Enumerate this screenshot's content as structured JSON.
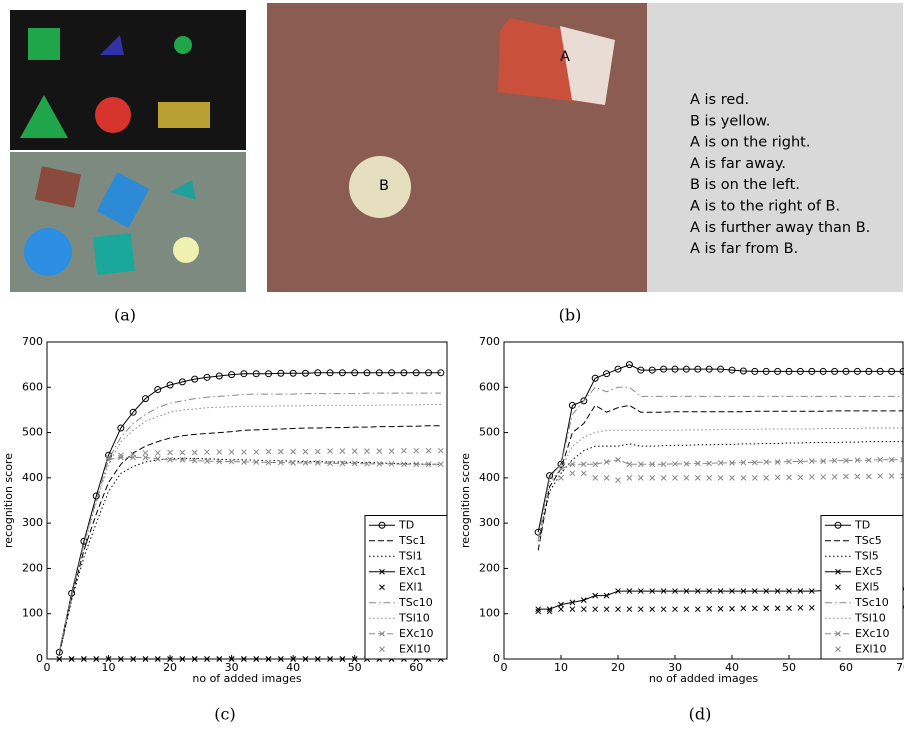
{
  "panels": {
    "a": {
      "caption": "(a)"
    },
    "b": {
      "caption": "(b)",
      "object_labels": [
        "A",
        "B"
      ],
      "statements": [
        "A is red.",
        "B is yellow.",
        "A is on the right.",
        "A is far away.",
        "B is on the left.",
        "A is to the right of B.",
        "A is further away than B.",
        "A is far from B."
      ]
    },
    "c": {
      "caption": "(c)"
    },
    "d": {
      "caption": "(d)"
    }
  },
  "chart_data": [
    {
      "type": "line",
      "xlabel": "no of added images",
      "ylabel": "recognition score",
      "xlim": [
        0,
        65
      ],
      "xticks": [
        0,
        10,
        20,
        30,
        40,
        50,
        60
      ],
      "ylim": [
        0,
        700
      ],
      "yticks": [
        0,
        100,
        200,
        300,
        400,
        500,
        600,
        700
      ],
      "legend": "lower right",
      "x": [
        2,
        4,
        6,
        8,
        10,
        12,
        14,
        16,
        18,
        20,
        22,
        24,
        26,
        28,
        30,
        32,
        34,
        36,
        38,
        40,
        42,
        44,
        46,
        48,
        50,
        52,
        54,
        56,
        58,
        60,
        62,
        64
      ],
      "series": [
        {
          "name": "TD",
          "color": "#000000",
          "dash": "solid",
          "marker": "o",
          "line": true,
          "values": [
            15,
            145,
            260,
            360,
            450,
            510,
            545,
            575,
            595,
            605,
            612,
            618,
            622,
            625,
            628,
            630,
            630,
            630,
            631,
            631,
            631,
            632,
            632,
            632,
            632,
            632,
            632,
            632,
            632,
            632,
            632,
            632
          ]
        },
        {
          "name": "TSc1",
          "color": "#000000",
          "dash": "dashed",
          "marker": "none",
          "line": true,
          "values": [
            10,
            135,
            240,
            320,
            390,
            430,
            455,
            470,
            480,
            488,
            493,
            496,
            498,
            500,
            502,
            505,
            506,
            507,
            508,
            509,
            510,
            510,
            511,
            511,
            512,
            512,
            513,
            513,
            514,
            514,
            515,
            515
          ]
        },
        {
          "name": "TSl1",
          "color": "#000000",
          "dash": "dotted",
          "marker": "none",
          "line": true,
          "values": [
            10,
            130,
            225,
            300,
            370,
            410,
            425,
            435,
            440,
            442,
            443,
            443,
            442,
            441,
            440,
            440,
            439,
            438,
            438,
            437,
            436,
            436,
            435,
            435,
            434,
            434,
            433,
            432,
            432,
            431,
            430,
            430
          ]
        },
        {
          "name": "EXc1",
          "color": "#000000",
          "dash": "solid",
          "marker": "x",
          "line": true,
          "values": [
            0,
            0,
            0,
            0,
            0,
            0,
            0,
            0,
            0,
            0,
            0,
            0,
            0,
            0,
            0,
            0,
            0,
            0,
            0,
            0,
            0,
            0,
            0,
            0,
            0,
            0,
            0,
            0,
            0,
            0,
            0,
            0
          ]
        },
        {
          "name": "EXl1",
          "color": "#000000",
          "dash": "solid",
          "marker": "x",
          "line": false,
          "values": [
            0,
            0,
            0,
            0,
            0,
            0,
            0,
            0,
            0,
            0,
            0,
            0,
            0,
            0,
            0,
            0,
            0,
            0,
            0,
            0,
            0,
            0,
            0,
            0,
            0,
            0,
            0,
            0,
            0,
            0,
            0,
            0
          ]
        },
        {
          "name": "TSc10",
          "color": "#888888",
          "dash": "dashdot",
          "marker": "none",
          "line": true,
          "values": [
            15,
            140,
            255,
            350,
            440,
            490,
            520,
            540,
            555,
            565,
            570,
            575,
            578,
            580,
            582,
            584,
            585,
            585,
            585,
            585,
            586,
            586,
            586,
            586,
            586,
            587,
            587,
            587,
            587,
            587,
            587,
            587
          ]
        },
        {
          "name": "TSl10",
          "color": "#888888",
          "dash": "dotted",
          "marker": "none",
          "line": true,
          "values": [
            15,
            140,
            250,
            345,
            430,
            480,
            505,
            525,
            535,
            545,
            550,
            552,
            555,
            556,
            557,
            558,
            558,
            558,
            559,
            559,
            559,
            560,
            560,
            560,
            560,
            560,
            561,
            561,
            561,
            561,
            562,
            562
          ]
        },
        {
          "name": "EXc10",
          "color": "#888888",
          "dash": "dashed",
          "marker": "x",
          "line": true,
          "values": [
            null,
            null,
            null,
            null,
            440,
            445,
            445,
            445,
            442,
            440,
            440,
            438,
            437,
            436,
            436,
            435,
            435,
            434,
            434,
            433,
            433,
            433,
            432,
            432,
            432,
            431,
            431,
            431,
            430,
            430,
            430,
            430
          ]
        },
        {
          "name": "EXl10",
          "color": "#888888",
          "dash": "solid",
          "marker": "x",
          "line": false,
          "values": [
            null,
            null,
            null,
            null,
            445,
            450,
            452,
            455,
            455,
            456,
            456,
            456,
            457,
            457,
            457,
            457,
            457,
            458,
            458,
            458,
            458,
            458,
            459,
            459,
            459,
            459,
            459,
            459,
            460,
            460,
            460,
            460
          ]
        }
      ]
    },
    {
      "type": "line",
      "xlabel": "no of added images",
      "ylabel": "recognition score",
      "xlim": [
        0,
        70
      ],
      "xticks": [
        0,
        10,
        20,
        30,
        40,
        50,
        60,
        70
      ],
      "ylim": [
        0,
        700
      ],
      "yticks": [
        0,
        100,
        200,
        300,
        400,
        500,
        600,
        700
      ],
      "legend": "lower right",
      "x": [
        6,
        8,
        10,
        12,
        14,
        16,
        18,
        20,
        22,
        24,
        26,
        28,
        30,
        32,
        34,
        36,
        38,
        40,
        42,
        44,
        46,
        48,
        50,
        52,
        54,
        56,
        58,
        60,
        62,
        64,
        66,
        68,
        70
      ],
      "series": [
        {
          "name": "TD",
          "color": "#000000",
          "dash": "solid",
          "marker": "o",
          "line": true,
          "values": [
            280,
            405,
            430,
            560,
            570,
            620,
            630,
            640,
            650,
            638,
            638,
            640,
            640,
            640,
            640,
            640,
            640,
            638,
            636,
            635,
            635,
            635,
            635,
            635,
            635,
            635,
            635,
            635,
            635,
            635,
            635,
            635,
            635
          ]
        },
        {
          "name": "TSc5",
          "color": "#000000",
          "dash": "dashed",
          "marker": "none",
          "line": true,
          "values": [
            240,
            380,
            420,
            500,
            520,
            560,
            545,
            555,
            560,
            545,
            545,
            545,
            546,
            546,
            546,
            546,
            546,
            546,
            546,
            547,
            547,
            547,
            547,
            547,
            547,
            547,
            548,
            548,
            548,
            548,
            548,
            548,
            548
          ]
        },
        {
          "name": "TSl5",
          "color": "#000000",
          "dash": "dotted",
          "marker": "none",
          "line": true,
          "values": [
            260,
            370,
            410,
            440,
            460,
            470,
            470,
            470,
            475,
            470,
            470,
            471,
            472,
            472,
            473,
            473,
            474,
            474,
            475,
            475,
            476,
            476,
            477,
            477,
            478,
            478,
            478,
            479,
            479,
            480,
            480,
            480,
            480
          ]
        },
        {
          "name": "EXc5",
          "color": "#000000",
          "dash": "solid",
          "marker": "x",
          "line": true,
          "values": [
            110,
            110,
            120,
            125,
            130,
            140,
            140,
            150,
            150,
            150,
            150,
            150,
            150,
            150,
            150,
            150,
            150,
            150,
            150,
            150,
            150,
            150,
            150,
            150,
            150,
            151,
            151,
            152,
            152,
            153,
            153,
            154,
            155
          ]
        },
        {
          "name": "EXl5",
          "color": "#000000",
          "dash": "solid",
          "marker": "x",
          "line": false,
          "values": [
            105,
            105,
            110,
            110,
            110,
            110,
            110,
            110,
            110,
            110,
            110,
            110,
            110,
            110,
            110,
            111,
            111,
            111,
            112,
            112,
            112,
            112,
            112,
            113,
            113,
            113,
            113,
            114,
            114,
            114,
            114,
            115,
            115
          ]
        },
        {
          "name": "TSc10",
          "color": "#888888",
          "dash": "dashdot",
          "marker": "none",
          "line": true,
          "values": [
            265,
            400,
            430,
            540,
            570,
            600,
            590,
            600,
            600,
            580,
            580,
            580,
            580,
            580,
            580,
            580,
            580,
            580,
            580,
            580,
            580,
            580,
            580,
            580,
            580,
            580,
            580,
            580,
            580,
            580,
            580,
            580,
            580
          ]
        },
        {
          "name": "TSl10",
          "color": "#888888",
          "dash": "dotted",
          "marker": "none",
          "line": true,
          "values": [
            260,
            390,
            420,
            470,
            490,
            500,
            505,
            505,
            505,
            505,
            505,
            505,
            505,
            506,
            506,
            506,
            507,
            507,
            507,
            507,
            508,
            508,
            508,
            508,
            508,
            509,
            509,
            509,
            509,
            510,
            510,
            510,
            510
          ]
        },
        {
          "name": "EXc10",
          "color": "#888888",
          "dash": "dashed",
          "marker": "x",
          "line": true,
          "values": [
            null,
            null,
            420,
            430,
            430,
            430,
            435,
            440,
            430,
            430,
            430,
            430,
            431,
            431,
            432,
            432,
            433,
            433,
            434,
            434,
            435,
            435,
            436,
            436,
            437,
            437,
            438,
            438,
            439,
            439,
            440,
            440,
            440
          ]
        },
        {
          "name": "EXl10",
          "color": "#888888",
          "dash": "solid",
          "marker": "x",
          "line": false,
          "values": [
            null,
            null,
            400,
            410,
            410,
            400,
            400,
            395,
            400,
            400,
            400,
            400,
            400,
            400,
            400,
            400,
            400,
            400,
            400,
            400,
            400,
            401,
            401,
            401,
            402,
            402,
            402,
            403,
            403,
            403,
            404,
            404,
            404
          ]
        }
      ]
    }
  ]
}
